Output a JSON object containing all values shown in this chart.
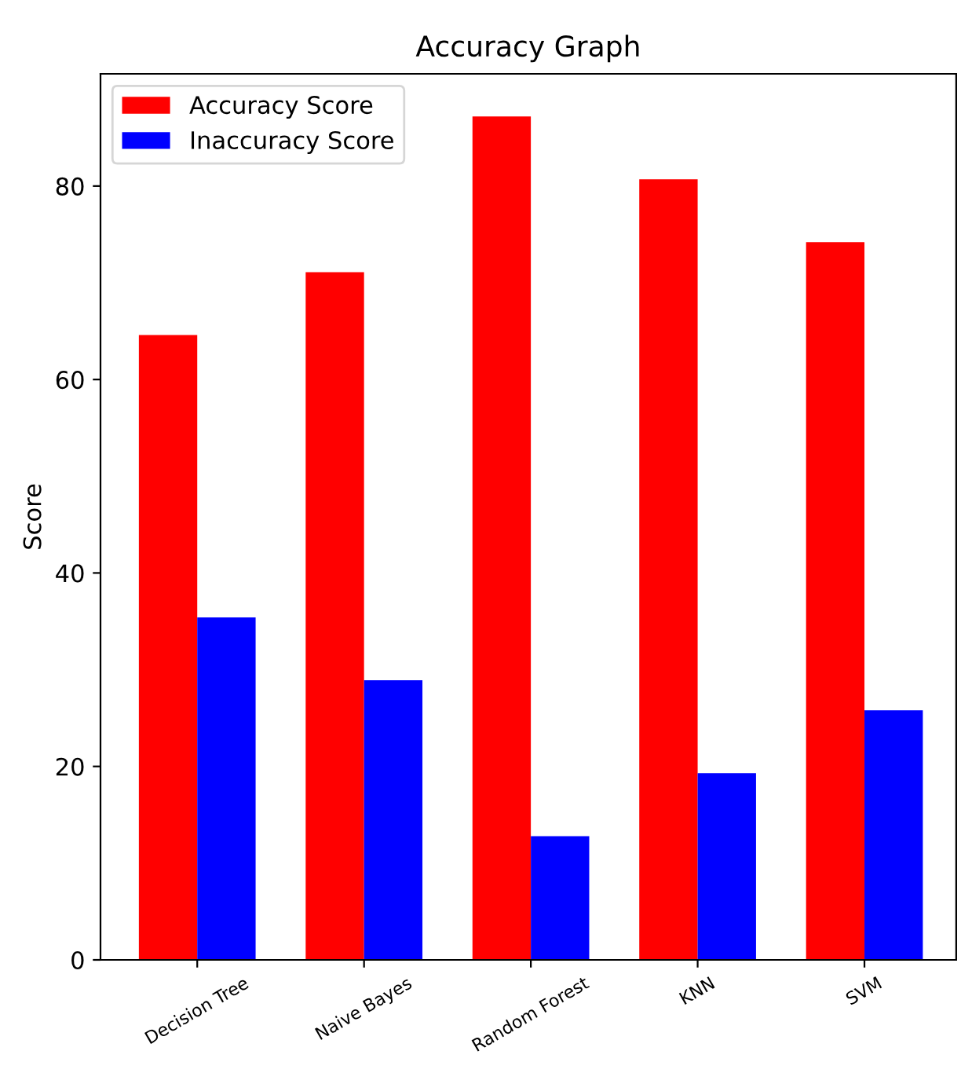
{
  "chart_data": {
    "type": "bar",
    "title": "Accuracy Graph",
    "ylabel": "Score",
    "categories": [
      "Decision Tree",
      "Naive Bayes",
      "Random Forest",
      "KNN",
      "SVM"
    ],
    "series": [
      {
        "name": "Accuracy Score",
        "color": "#ff0000",
        "values": [
          64.6,
          71.1,
          87.2,
          80.7,
          74.2
        ]
      },
      {
        "name": "Inaccuracy Score",
        "color": "#0000ff",
        "values": [
          35.4,
          28.9,
          12.8,
          19.3,
          25.8
        ]
      }
    ],
    "ylim": [
      0,
      91.6
    ],
    "yticks": [
      0,
      20,
      40,
      60,
      80
    ],
    "grid": false,
    "legend": "top left"
  }
}
